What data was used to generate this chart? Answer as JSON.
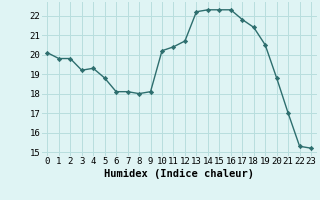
{
  "x": [
    0,
    1,
    2,
    3,
    4,
    5,
    6,
    7,
    8,
    9,
    10,
    11,
    12,
    13,
    14,
    15,
    16,
    17,
    18,
    19,
    20,
    21,
    22,
    23
  ],
  "y": [
    20.1,
    19.8,
    19.8,
    19.2,
    19.3,
    18.8,
    18.1,
    18.1,
    18.0,
    18.1,
    20.2,
    20.4,
    20.7,
    22.2,
    22.3,
    22.3,
    22.3,
    21.8,
    21.4,
    20.5,
    18.8,
    17.0,
    15.3,
    15.2
  ],
  "line_color": "#2d6e6e",
  "marker": "D",
  "marker_size": 2.2,
  "bg_color": "#dff4f4",
  "grid_color": "#b8dede",
  "xlabel": "Humidex (Indice chaleur)",
  "xlim": [
    -0.5,
    23.5
  ],
  "ylim": [
    14.8,
    22.7
  ],
  "yticks": [
    15,
    16,
    17,
    18,
    19,
    20,
    21,
    22
  ],
  "xticks": [
    0,
    1,
    2,
    3,
    4,
    5,
    6,
    7,
    8,
    9,
    10,
    11,
    12,
    13,
    14,
    15,
    16,
    17,
    18,
    19,
    20,
    21,
    22,
    23
  ],
  "xlabel_fontsize": 7.5,
  "tick_fontsize": 6.5,
  "linewidth": 1.0
}
